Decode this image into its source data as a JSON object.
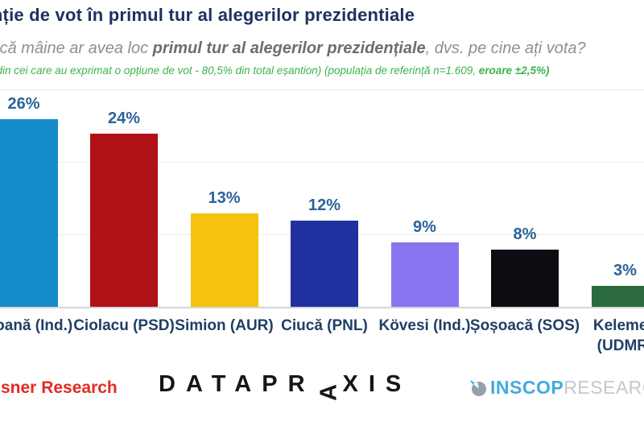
{
  "header": {
    "title": "Intenție de vot în primul tur al alegerilor prezidentiale",
    "subtitle": {
      "prefix": "Dacă mâine ar avea loc ",
      "bold": "primul tur al alegerilor prezidențiale",
      "suffix": ", dvs. pe cine ați vota?"
    },
    "note": {
      "regular": "(din cei care au exprimat o opțiune de vot  - 80,5% din total eșantion) (populația de referință n=1.609, ",
      "bold": "eroare ±2,5%)"
    }
  },
  "chart_data": {
    "type": "bar",
    "categories": [
      "Geoană (Ind.)",
      "Ciolacu (PSD)",
      "Simion (AUR)",
      "Ciucă (PNL)",
      "Kövesi (Ind.)",
      "Șoșoacă (SOS)",
      "Kelemen\n(UDMR)"
    ],
    "values": [
      26,
      24,
      13,
      12,
      9,
      8,
      3
    ],
    "value_labels": [
      "26%",
      "24%",
      "13%",
      "12%",
      "9%",
      "8%",
      "3%"
    ],
    "bar_colors": [
      "#168ccb",
      "#b01217",
      "#f6c30e",
      "#20309e",
      "#8b74f1",
      "#0c0d13",
      "#2c6b3e"
    ],
    "title": "Intenție de vot în primul tur al alegerilor prezidentiale",
    "xlabel": "",
    "ylabel": "",
    "ylim": [
      0,
      30
    ],
    "gridline_values": [
      10,
      20,
      30
    ],
    "grid": true,
    "legend": false,
    "value_label_color": "#2a6398",
    "category_label_color": "#1f3f66"
  },
  "footer": {
    "left_logo_text": "sner Research",
    "datapraxis": {
      "pre": "DATAPR",
      "rotated_letter": "A",
      "post": "XIS"
    },
    "inscop": {
      "name": "INSCOP",
      "suffix": "RESEARCH"
    }
  }
}
